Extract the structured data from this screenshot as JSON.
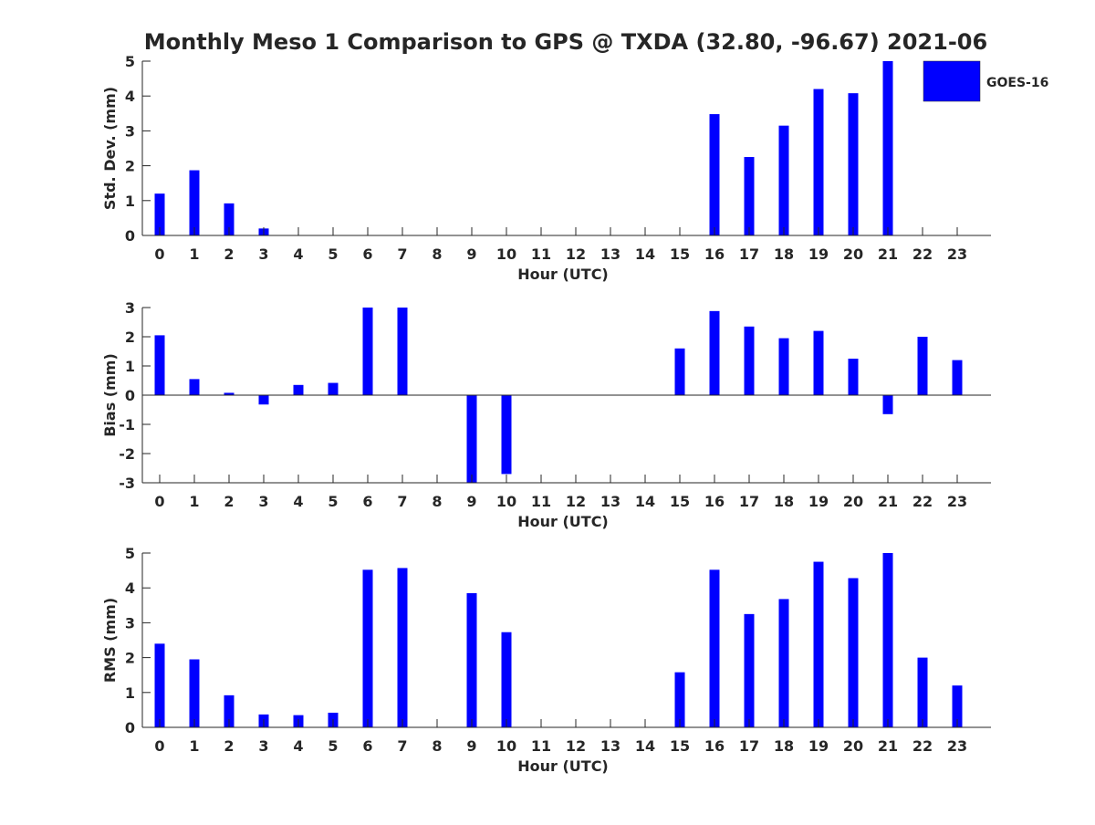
{
  "title": "Monthly Meso 1 Comparison to GPS @ TXDA (32.80, -96.67) 2021-06",
  "legend": {
    "label": "GOES-16",
    "placement": "top-right"
  },
  "colors": {
    "bar": "#0000ff",
    "axis": "#262626",
    "background": "#ffffff"
  },
  "chart_data": [
    {
      "type": "bar",
      "xlabel": "Hour (UTC)",
      "ylabel": "Std. Dev. (mm)",
      "ylim": [
        0,
        5
      ],
      "yticks": [
        "0",
        "1",
        "2",
        "3",
        "4",
        "5"
      ],
      "categories": [
        "0",
        "1",
        "2",
        "3",
        "4",
        "5",
        "6",
        "7",
        "8",
        "9",
        "10",
        "11",
        "12",
        "13",
        "14",
        "15",
        "16",
        "17",
        "18",
        "19",
        "20",
        "21",
        "22",
        "23"
      ],
      "series": [
        {
          "name": "GOES-16",
          "values": [
            1.2,
            1.87,
            0.92,
            0.2,
            0,
            0,
            0,
            0,
            0,
            0,
            0,
            0,
            0,
            0,
            0,
            0,
            3.48,
            2.25,
            3.15,
            4.2,
            4.08,
            5.0,
            0,
            0
          ]
        }
      ],
      "grid": false
    },
    {
      "type": "bar",
      "xlabel": "Hour (UTC)",
      "ylabel": "Bias (mm)",
      "ylim": [
        -3,
        3
      ],
      "yticks": [
        "-3",
        "-2",
        "-1",
        "0",
        "1",
        "2",
        "3"
      ],
      "categories": [
        "0",
        "1",
        "2",
        "3",
        "4",
        "5",
        "6",
        "7",
        "8",
        "9",
        "10",
        "11",
        "12",
        "13",
        "14",
        "15",
        "16",
        "17",
        "18",
        "19",
        "20",
        "21",
        "22",
        "23"
      ],
      "series": [
        {
          "name": "GOES-16",
          "values": [
            2.05,
            0.55,
            0.08,
            -0.32,
            0.35,
            0.42,
            3.0,
            3.0,
            0,
            -3.0,
            -2.7,
            0,
            0,
            0,
            0,
            1.6,
            2.88,
            2.35,
            1.95,
            2.2,
            1.25,
            -0.65,
            2.0,
            1.2
          ]
        }
      ],
      "grid": false
    },
    {
      "type": "bar",
      "xlabel": "Hour (UTC)",
      "ylabel": "RMS (mm)",
      "ylim": [
        0,
        5
      ],
      "yticks": [
        "0",
        "1",
        "2",
        "3",
        "4",
        "5"
      ],
      "categories": [
        "0",
        "1",
        "2",
        "3",
        "4",
        "5",
        "6",
        "7",
        "8",
        "9",
        "10",
        "11",
        "12",
        "13",
        "14",
        "15",
        "16",
        "17",
        "18",
        "19",
        "20",
        "21",
        "22",
        "23"
      ],
      "series": [
        {
          "name": "GOES-16",
          "values": [
            2.4,
            1.95,
            0.92,
            0.37,
            0.35,
            0.42,
            4.52,
            4.57,
            0,
            3.85,
            2.73,
            0,
            0,
            0,
            0,
            1.58,
            4.52,
            3.25,
            3.68,
            4.75,
            4.28,
            5.0,
            2.0,
            1.2
          ]
        }
      ],
      "grid": false
    }
  ]
}
